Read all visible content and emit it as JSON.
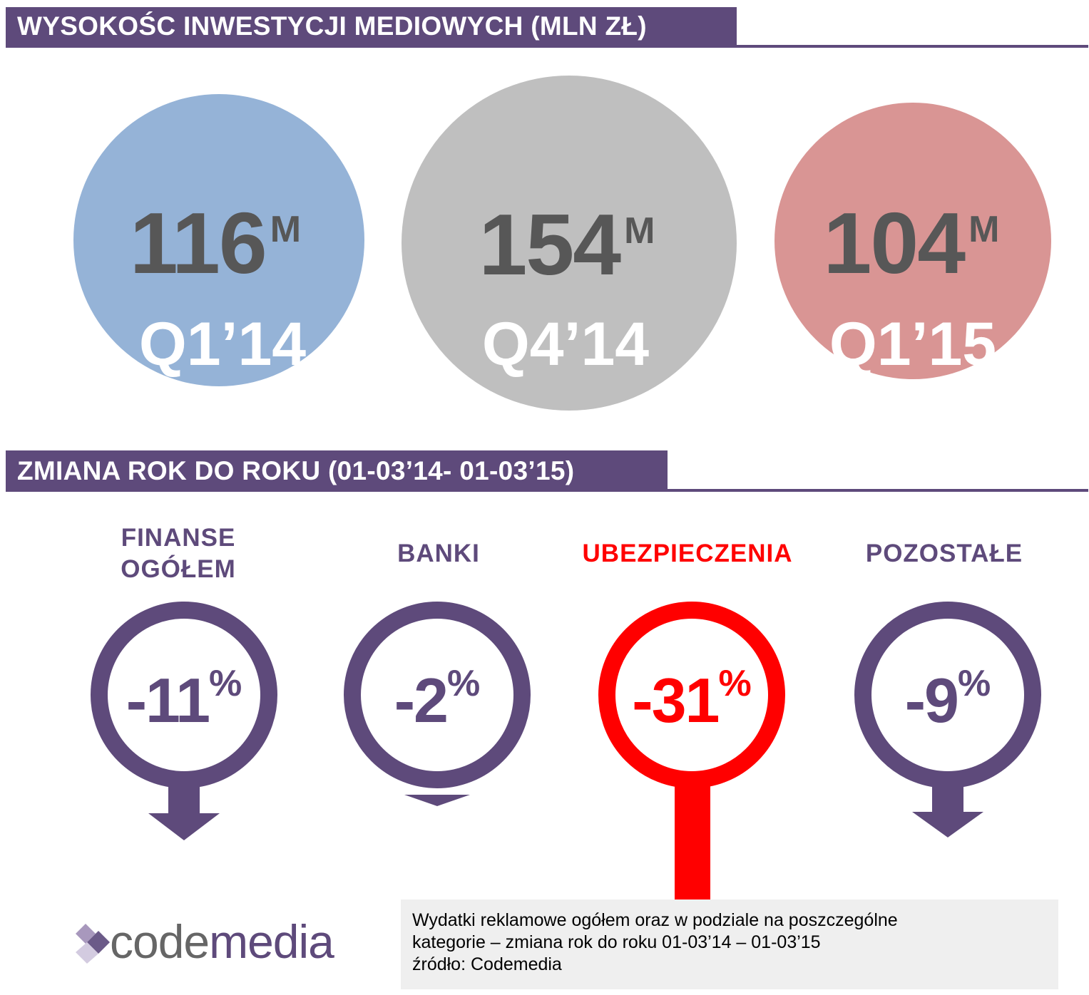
{
  "section1": {
    "title": "WYSOKOŚC INWESTYCJI MEDIOWYCH (MLN ZŁ)"
  },
  "quarters": [
    {
      "value": "116",
      "unit": "M",
      "period": "Q1’14",
      "color": "#95b3d7"
    },
    {
      "value": "154",
      "unit": "M",
      "period": "Q4’14",
      "color": "#bfbfbf"
    },
    {
      "value": "104",
      "unit": "M",
      "period": "Q1’15",
      "color": "#d99594"
    }
  ],
  "section2": {
    "title": "ZMIANA ROK DO ROKU (01-03’14- 01-03’15)"
  },
  "categories": [
    {
      "label_line1": "FINANSE",
      "label_line2": "OGÓŁEM",
      "value": "-11",
      "unit": "%",
      "color": "#5e4a7b",
      "pointer": "arrow"
    },
    {
      "label_line1": "BANKI",
      "label_line2": "",
      "value": "-2",
      "unit": "%",
      "color": "#5e4a7b",
      "pointer": "small-arrow"
    },
    {
      "label_line1": "UBEZPIECZENIA",
      "label_line2": "",
      "value": "-31",
      "unit": "%",
      "color": "#ff0000",
      "pointer": "bar"
    },
    {
      "label_line1": "POZOSTAŁE",
      "label_line2": "",
      "value": "-9",
      "unit": "%",
      "color": "#5e4a7b",
      "pointer": "arrow"
    }
  ],
  "footer": {
    "logo_prefix": "code",
    "logo_suffix": "media",
    "line1": "Wydatki reklamowe ogółem oraz w podziale na poszczególne",
    "line2": "kategorie – zmiana rok do roku 01-03’14 – 01-03’15",
    "line3": "źródło: Codemedia"
  },
  "colors": {
    "accent": "#5e4a7b",
    "alert": "#ff0000",
    "value_text": "#575757"
  }
}
